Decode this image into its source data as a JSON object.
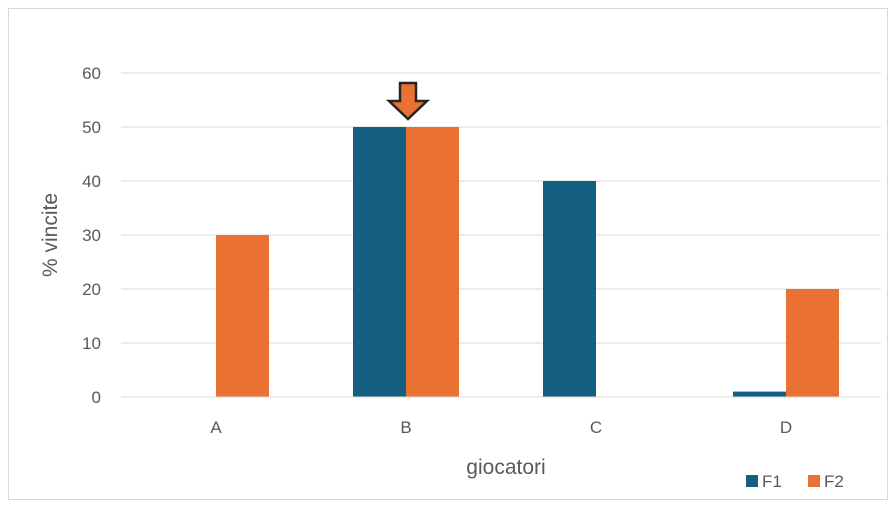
{
  "chart_data": {
    "type": "bar",
    "categories": [
      "A",
      "B",
      "C",
      "D"
    ],
    "series": [
      {
        "name": "F1",
        "values": [
          0,
          50,
          40,
          1
        ],
        "color": "#156082"
      },
      {
        "name": "F2",
        "values": [
          30,
          50,
          0,
          20
        ],
        "color": "#E97132"
      }
    ],
    "title": "",
    "xlabel": "giocatori",
    "ylabel": "% vincite",
    "ylim": [
      0,
      60
    ],
    "yticks": [
      0,
      10,
      20,
      30,
      40,
      50,
      60
    ],
    "grid": true,
    "legend_position": "bottom-right",
    "annotation": {
      "type": "arrow-down",
      "category": "B",
      "color": "#E97132",
      "outline": "#262626"
    },
    "gridline_color": "#d9d9d9",
    "text_color": "#595959"
  }
}
